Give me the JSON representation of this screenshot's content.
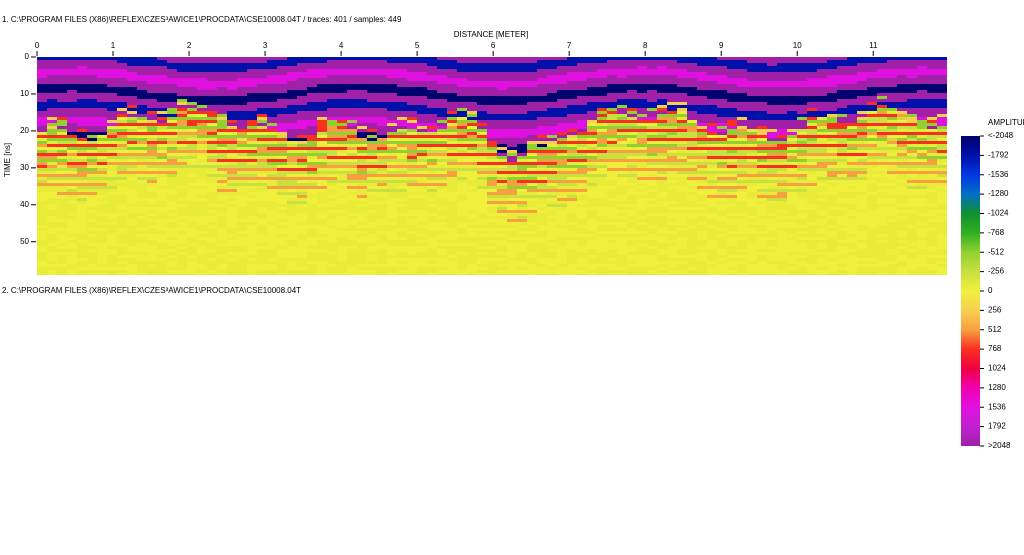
{
  "header": {
    "line1": "1. C:\\PROGRAM FILES (X86)\\REFLEX\\CZES³AWICE1\\PROCDATA\\CSE10008.04T  / traces: 401 / samples: 449",
    "line2": "2. C:\\PROGRAM FILES (X86)\\REFLEX\\CZES³AWICE1\\PROCDATA\\CSE10008.04T"
  },
  "chart_data": {
    "type": "heatmap",
    "xlabel": "DISTANCE [METER]",
    "ylabel": "TIME [ns]",
    "xlim": [
      0,
      11.97
    ],
    "xticks": [
      0,
      1,
      2,
      3,
      4,
      5,
      6,
      7,
      8,
      9,
      10,
      11
    ],
    "ylim": [
      0,
      59
    ],
    "yticks": [
      0,
      10,
      20,
      30,
      40,
      50
    ],
    "colorbar_title": "AMPLITUDE",
    "colorbar_ticks": [
      {
        "value": -2048,
        "label": "<-2048"
      },
      -1792,
      -1536,
      -1280,
      -1024,
      -768,
      -512,
      -256,
      0,
      256,
      512,
      768,
      1024,
      1280,
      1536,
      1792,
      {
        "value": 2048,
        "label": ">2048"
      }
    ],
    "colorbar_colors": [
      "#00006e",
      "#0010a8",
      "#0038e0",
      "#0070c8",
      "#109030",
      "#30b020",
      "#90d030",
      "#c8e040",
      "#f0f03c",
      "#f8d050",
      "#f8a040",
      "#f83020",
      "#f00040",
      "#f000b0",
      "#e010e0",
      "#c020d0",
      "#a020a8"
    ]
  }
}
